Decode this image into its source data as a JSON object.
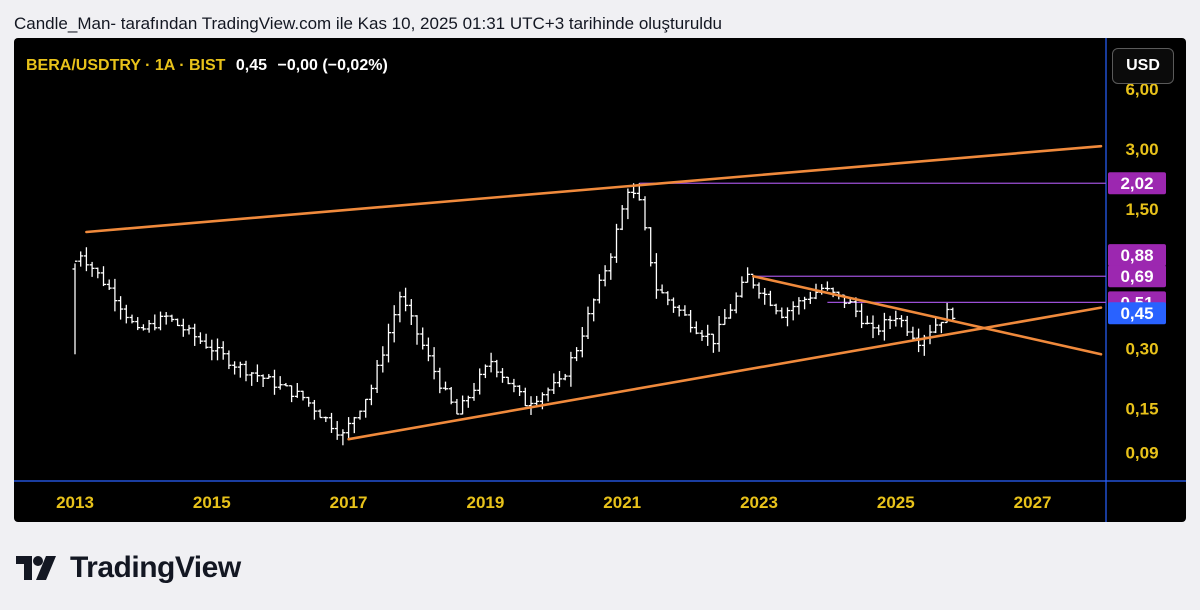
{
  "caption": "Candle_Man- tarafından TradingView.com ile Kas 10, 2025 01:31 UTC+3 tarihinde oluşturuldu",
  "symbol_label": "BERA/USDTRY · 1A · BIST",
  "last_price": "0,45",
  "change": "−0,00 (−0,02%)",
  "currency_button": "USD",
  "brand": "TradingView",
  "colors": {
    "background": "#000000",
    "trendline": "#f08a3c",
    "level_line": "#9c4fd6",
    "level_badge": "#9c27b0",
    "last_price_badge": "#2962ff",
    "axis_text": "#e8c21a",
    "candles": "#ffffff"
  },
  "chart_data": {
    "type": "ohlc",
    "title": "BERA/USDTRY · 1A · BIST",
    "interval": "1 month",
    "y_scale": "log",
    "x_tick_labels": [
      "2013",
      "2015",
      "2017",
      "2019",
      "2021",
      "2023",
      "2025",
      "2027"
    ],
    "y_tick_labels": [
      "3,00",
      "1,50",
      "0,30",
      "0,15",
      "0,09"
    ],
    "y_partial_label": "6,00",
    "price_badges": [
      {
        "value": "2,02",
        "kind": "level"
      },
      {
        "value": "0,88",
        "kind": "level"
      },
      {
        "value": "0,69",
        "kind": "level"
      },
      {
        "value": "0,51",
        "kind": "level"
      },
      {
        "value": "0,45",
        "kind": "last"
      }
    ],
    "horizontal_levels": [
      2.02,
      0.69,
      0.51
    ],
    "last_price": 0.45,
    "trendlines": [
      {
        "name": "upper channel",
        "from": [
          "2013-03",
          1.15
        ],
        "to": [
          "2028-01",
          3.1
        ]
      },
      {
        "name": "lower support",
        "from": [
          "2017-01",
          0.105
        ],
        "to": [
          "2028-01",
          0.48
        ]
      },
      {
        "name": "descending resistance",
        "from": [
          "2022-12",
          0.69
        ],
        "to": [
          "2028-01",
          0.28
        ]
      }
    ],
    "anchor_points": [
      {
        "date": "2013-01",
        "close": 0.75
      },
      {
        "date": "2013-03",
        "close": 0.9
      },
      {
        "date": "2013-09",
        "close": 0.55
      },
      {
        "date": "2014-01",
        "close": 0.36
      },
      {
        "date": "2014-06",
        "close": 0.43
      },
      {
        "date": "2015-06",
        "close": 0.25
      },
      {
        "date": "2016-06",
        "close": 0.17
      },
      {
        "date": "2017-01",
        "close": 0.11
      },
      {
        "date": "2017-06",
        "close": 0.19
      },
      {
        "date": "2017-11",
        "close": 0.55
      },
      {
        "date": "2018-06",
        "close": 0.2
      },
      {
        "date": "2018-09",
        "close": 0.14
      },
      {
        "date": "2019-03",
        "close": 0.26
      },
      {
        "date": "2019-09",
        "close": 0.16
      },
      {
        "date": "2020-03",
        "close": 0.2
      },
      {
        "date": "2020-06",
        "close": 0.3
      },
      {
        "date": "2020-12",
        "close": 0.9
      },
      {
        "date": "2021-03",
        "close": 1.9
      },
      {
        "date": "2021-05",
        "close": 1.6
      },
      {
        "date": "2021-08",
        "close": 0.6
      },
      {
        "date": "2022-03",
        "close": 0.38
      },
      {
        "date": "2022-06",
        "close": 0.33
      },
      {
        "date": "2022-12",
        "close": 0.69
      },
      {
        "date": "2023-06",
        "close": 0.45
      },
      {
        "date": "2024-01",
        "close": 0.6
      },
      {
        "date": "2024-06",
        "close": 0.5
      },
      {
        "date": "2024-10",
        "close": 0.36
      },
      {
        "date": "2025-02",
        "close": 0.44
      },
      {
        "date": "2025-06",
        "close": 0.33
      },
      {
        "date": "2025-11",
        "close": 0.45
      }
    ]
  }
}
